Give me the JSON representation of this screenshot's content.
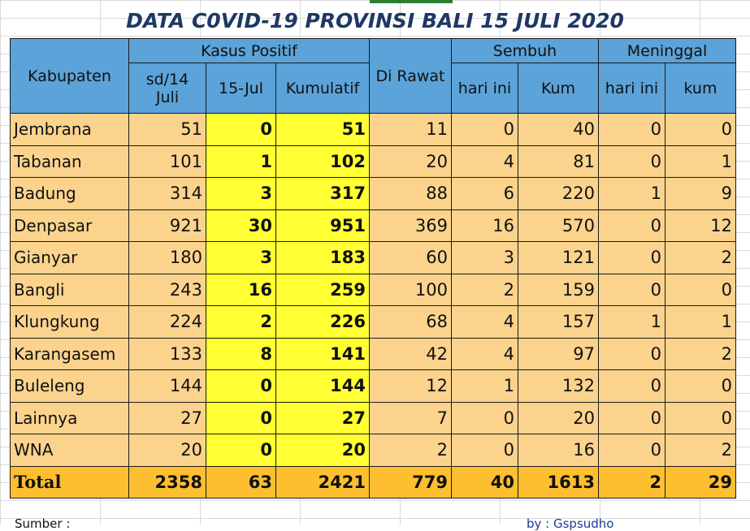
{
  "title": "DATA C0VID-19 PROVINSI BALI 15 JULI 2020",
  "headers": {
    "kabupaten": "Kabupaten",
    "kasus_positif": "Kasus Positif",
    "sd14": "sd/14 Juli",
    "tgl": "15-Jul",
    "kumulatif": "Kumulatif",
    "dirawat": "Di Rawat",
    "sembuh": "Sembuh",
    "sembuh_hari_ini": "hari ini",
    "sembuh_kum": "Kum",
    "meninggal": "Meninggal",
    "meninggal_hari_ini": "hari ini",
    "meninggal_kum": "kum"
  },
  "rows": [
    {
      "name": "Jembrana",
      "sd14": "51",
      "tgl": "0",
      "kumulatif": "51",
      "dirawat": "11",
      "sembuh_hari_ini": "0",
      "sembuh_kum": "40",
      "meninggal_hari_ini": "0",
      "meninggal_kum": "0"
    },
    {
      "name": "Tabanan",
      "sd14": "101",
      "tgl": "1",
      "kumulatif": "102",
      "dirawat": "20",
      "sembuh_hari_ini": "4",
      "sembuh_kum": "81",
      "meninggal_hari_ini": "0",
      "meninggal_kum": "1"
    },
    {
      "name": "Badung",
      "sd14": "314",
      "tgl": "3",
      "kumulatif": "317",
      "dirawat": "88",
      "sembuh_hari_ini": "6",
      "sembuh_kum": "220",
      "meninggal_hari_ini": "1",
      "meninggal_kum": "9"
    },
    {
      "name": "Denpasar",
      "sd14": "921",
      "tgl": "30",
      "kumulatif": "951",
      "dirawat": "369",
      "sembuh_hari_ini": "16",
      "sembuh_kum": "570",
      "meninggal_hari_ini": "0",
      "meninggal_kum": "12"
    },
    {
      "name": "Gianyar",
      "sd14": "180",
      "tgl": "3",
      "kumulatif": "183",
      "dirawat": "60",
      "sembuh_hari_ini": "3",
      "sembuh_kum": "121",
      "meninggal_hari_ini": "0",
      "meninggal_kum": "2"
    },
    {
      "name": "Bangli",
      "sd14": "243",
      "tgl": "16",
      "kumulatif": "259",
      "dirawat": "100",
      "sembuh_hari_ini": "2",
      "sembuh_kum": "159",
      "meninggal_hari_ini": "0",
      "meninggal_kum": "0"
    },
    {
      "name": "Klungkung",
      "sd14": "224",
      "tgl": "2",
      "kumulatif": "226",
      "dirawat": "68",
      "sembuh_hari_ini": "4",
      "sembuh_kum": "157",
      "meninggal_hari_ini": "1",
      "meninggal_kum": "1"
    },
    {
      "name": "Karangasem",
      "sd14": "133",
      "tgl": "8",
      "kumulatif": "141",
      "dirawat": "42",
      "sembuh_hari_ini": "4",
      "sembuh_kum": "97",
      "meninggal_hari_ini": "0",
      "meninggal_kum": "2"
    },
    {
      "name": "Buleleng",
      "sd14": "144",
      "tgl": "0",
      "kumulatif": "144",
      "dirawat": "12",
      "sembuh_hari_ini": "1",
      "sembuh_kum": "132",
      "meninggal_hari_ini": "0",
      "meninggal_kum": "0"
    },
    {
      "name": "Lainnya",
      "sd14": "27",
      "tgl": "0",
      "kumulatif": "27",
      "dirawat": "7",
      "sembuh_hari_ini": "0",
      "sembuh_kum": "20",
      "meninggal_hari_ini": "0",
      "meninggal_kum": "0"
    },
    {
      "name": "WNA",
      "sd14": "20",
      "tgl": "0",
      "kumulatif": "20",
      "dirawat": "2",
      "sembuh_hari_ini": "0",
      "sembuh_kum": "16",
      "meninggal_hari_ini": "0",
      "meninggal_kum": "2"
    }
  ],
  "total": {
    "name": "Total",
    "sd14": "2358",
    "tgl": "63",
    "kumulatif": "2421",
    "dirawat": "779",
    "sembuh_hari_ini": "40",
    "sembuh_kum": "1613",
    "meninggal_hari_ini": "2",
    "meninggal_kum": "29"
  },
  "footer": {
    "source_label": "Sumber :",
    "credit": "by : Gspsudho"
  },
  "colors": {
    "header": "#5ba3d9",
    "row": "#fbd38d",
    "highlight": "#ffff33",
    "total": "#fdbf2f",
    "title": "#1f3864"
  }
}
